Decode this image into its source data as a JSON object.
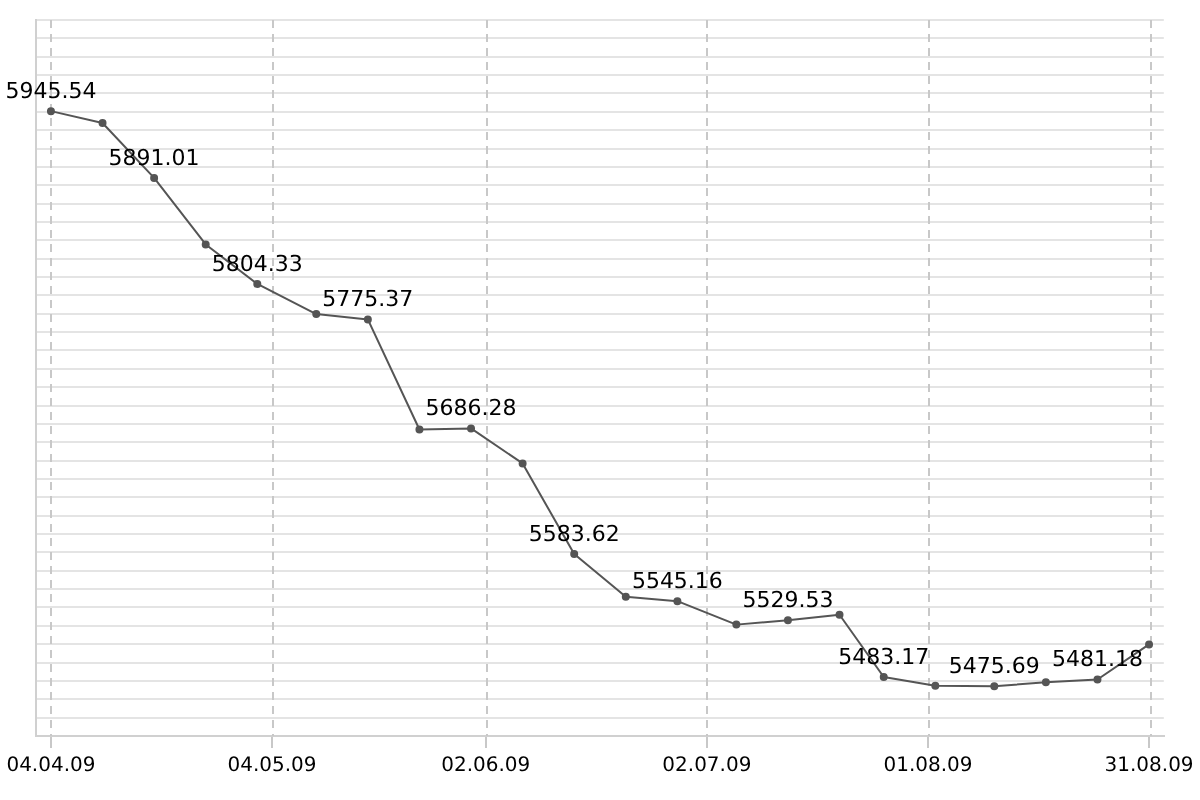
{
  "chart_data": {
    "type": "line",
    "x": [
      "2009-04-04",
      "2009-04-11",
      "2009-04-18",
      "2009-04-25",
      "2009-05-02",
      "2009-05-10",
      "2009-05-17",
      "2009-05-24",
      "2009-05-31",
      "2009-06-07",
      "2009-06-14",
      "2009-06-21",
      "2009-06-28",
      "2009-07-06",
      "2009-07-13",
      "2009-07-20",
      "2009-07-26",
      "2009-08-02",
      "2009-08-10",
      "2009-08-17",
      "2009-08-24",
      "2009-08-31"
    ],
    "series": [
      {
        "color": "#555555",
        "values": [
          5945.54,
          5935.8,
          5891.01,
          5836.6,
          5804.33,
          5779.7,
          5775.37,
          5685.4,
          5686.28,
          5657.7,
          5583.62,
          5548.8,
          5545.16,
          5526.0,
          5529.53,
          5534.1,
          5483.17,
          5476.0,
          5475.69,
          5478.9,
          5481.18,
          5509.8
        ],
        "value_labels": [
          "5945.54",
          null,
          "5891.01",
          null,
          "5804.33",
          null,
          "5775.37",
          null,
          "5686.28",
          null,
          "5583.62",
          null,
          "5545.16",
          null,
          "5529.53",
          null,
          "5483.17",
          null,
          "5475.69",
          null,
          "5481.18",
          null
        ]
      }
    ],
    "xlim": [
      "2009-04-02",
      "2009-09-02"
    ],
    "xticks": [
      {
        "value": "2009-04-04",
        "label": "04.04.09"
      },
      {
        "value": "2009-05-04",
        "label": "04.05.09"
      },
      {
        "value": "2009-06-02",
        "label": "02.06.09"
      },
      {
        "value": "2009-07-02",
        "label": "02.07.09"
      },
      {
        "value": "2009-08-01",
        "label": "01.08.09"
      },
      {
        "value": "2009-08-31",
        "label": "31.08.09"
      }
    ],
    "ylim": [
      5435,
      6020
    ],
    "yticks": [
      {
        "value": 5435,
        "label": null
      },
      {
        "value": 5450,
        "label": null
      },
      {
        "value": 5465,
        "label": null
      },
      {
        "value": 5480,
        "label": null
      },
      {
        "value": 5495,
        "label": null
      },
      {
        "value": 5510,
        "label": null
      },
      {
        "value": 5525,
        "label": null
      },
      {
        "value": 5540,
        "label": null
      },
      {
        "value": 5555,
        "label": null
      },
      {
        "value": 5570,
        "label": null
      },
      {
        "value": 5585,
        "label": null
      },
      {
        "value": 5600,
        "label": null
      },
      {
        "value": 5615,
        "label": null
      },
      {
        "value": 5630,
        "label": null
      },
      {
        "value": 5645,
        "label": null
      },
      {
        "value": 5660,
        "label": null
      },
      {
        "value": 5675,
        "label": null
      },
      {
        "value": 5690,
        "label": null
      },
      {
        "value": 5705,
        "label": null
      },
      {
        "value": 5720,
        "label": null
      },
      {
        "value": 5735,
        "label": null
      },
      {
        "value": 5750,
        "label": null
      },
      {
        "value": 5765,
        "label": null
      },
      {
        "value": 5780,
        "label": null
      },
      {
        "value": 5795,
        "label": null
      },
      {
        "value": 5810,
        "label": null
      },
      {
        "value": 5825,
        "label": null
      },
      {
        "value": 5840,
        "label": null
      },
      {
        "value": 5855,
        "label": null
      },
      {
        "value": 5870,
        "label": null
      },
      {
        "value": 5885,
        "label": null
      },
      {
        "value": 5900,
        "label": null
      },
      {
        "value": 5915,
        "label": null
      },
      {
        "value": 5930,
        "label": null
      },
      {
        "value": 5945,
        "label": null
      },
      {
        "value": 5960,
        "label": null
      },
      {
        "value": 5975,
        "label": null
      },
      {
        "value": 5990,
        "label": null
      },
      {
        "value": 6005,
        "label": null
      },
      {
        "value": 6020,
        "label": null
      }
    ],
    "tick_labels": "x",
    "grid": true,
    "marker": "circle",
    "line_style": "solid",
    "legend": false
  }
}
